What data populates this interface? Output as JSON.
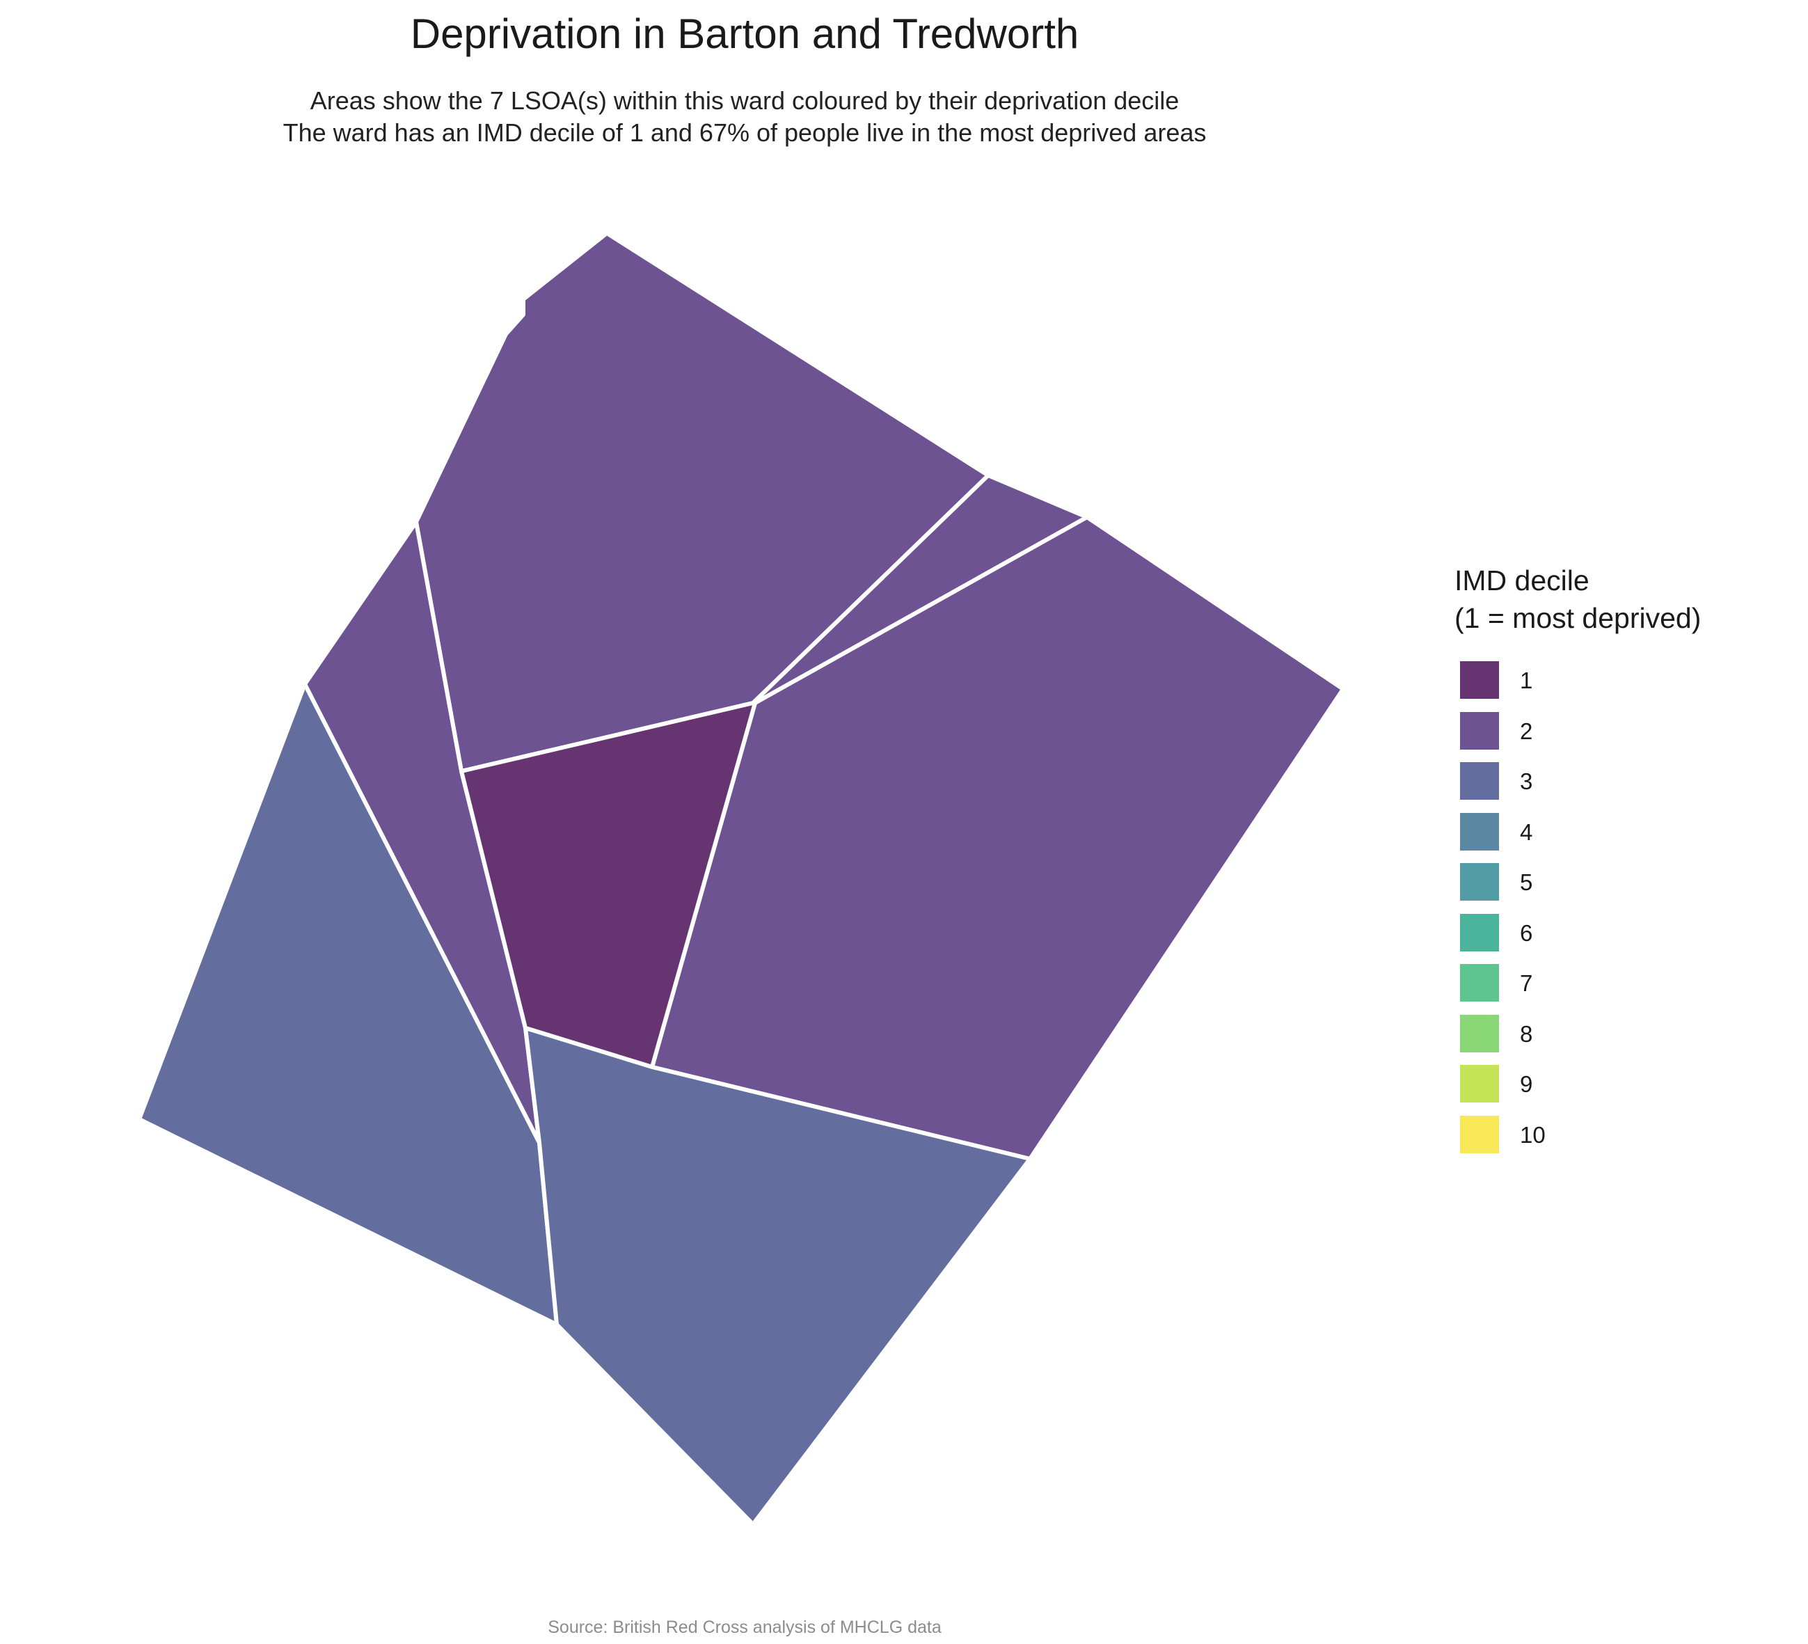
{
  "title": "Deprivation in Barton and Tredworth",
  "subtitle": {
    "line1": "Areas show the 7 LSOA(s) within this ward coloured by their deprivation decile",
    "line2": "The ward has an IMD decile of 1 and 67% of people live in the most deprived areas"
  },
  "legend": {
    "title_line1": "IMD decile",
    "title_line2": "(1 = most deprived)",
    "items": [
      {
        "label": "1",
        "color": "#673472"
      },
      {
        "label": "2",
        "color": "#6e5393"
      },
      {
        "label": "3",
        "color": "#636e9e"
      },
      {
        "label": "4",
        "color": "#5b87a3"
      },
      {
        "label": "5",
        "color": "#529da5"
      },
      {
        "label": "6",
        "color": "#4ab59c"
      },
      {
        "label": "7",
        "color": "#5ec58f"
      },
      {
        "label": "8",
        "color": "#8ad777"
      },
      {
        "label": "9",
        "color": "#c4e356"
      },
      {
        "label": "10",
        "color": "#f8e857"
      }
    ]
  },
  "areas": [
    {
      "id": "lsoa-north",
      "decile": 2
    },
    {
      "id": "lsoa-northeast-sliver",
      "decile": 2
    },
    {
      "id": "lsoa-east",
      "decile": 2
    },
    {
      "id": "lsoa-west-strip",
      "decile": 2
    },
    {
      "id": "lsoa-centre",
      "decile": 1
    },
    {
      "id": "lsoa-southwest",
      "decile": 3
    },
    {
      "id": "lsoa-south",
      "decile": 3
    }
  ],
  "caption": "Source: British Red Cross analysis of MHCLG data"
}
